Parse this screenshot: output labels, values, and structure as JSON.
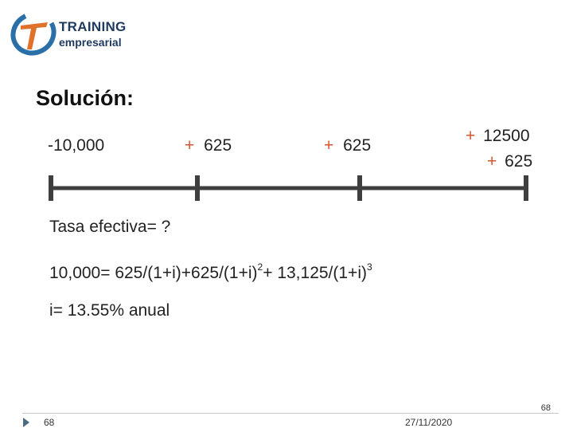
{
  "logo": {
    "name_line1": "TRAINING",
    "name_line2": "empresarial",
    "ring_color": "#2b6fa8",
    "t_color": "#e0702a"
  },
  "slide": {
    "title": "Solución:",
    "cash_flows": {
      "t0": "-10,000",
      "t1_sign": "+",
      "t1_value": "625",
      "t2_sign": "+",
      "t2_value": "625",
      "t3_line1_sign": "+",
      "t3_line1_value": "12500",
      "t3_line2_sign": "+",
      "t3_line2_value": "625"
    },
    "line1": "Tasa efectiva= ?",
    "equation": {
      "part1": "10,000= 625/(1+i)+625/(1+i)",
      "exp1": "2",
      "part2": "+ 13,125/(1+i)",
      "exp2": "3"
    },
    "result": "i= 13.55% anual"
  },
  "footer": {
    "page_number_right": "68",
    "slide_number": "68",
    "date": "27/11/2020",
    "arrow_icon": "triangle-right-icon",
    "arrow_color": "#4a6b82"
  }
}
